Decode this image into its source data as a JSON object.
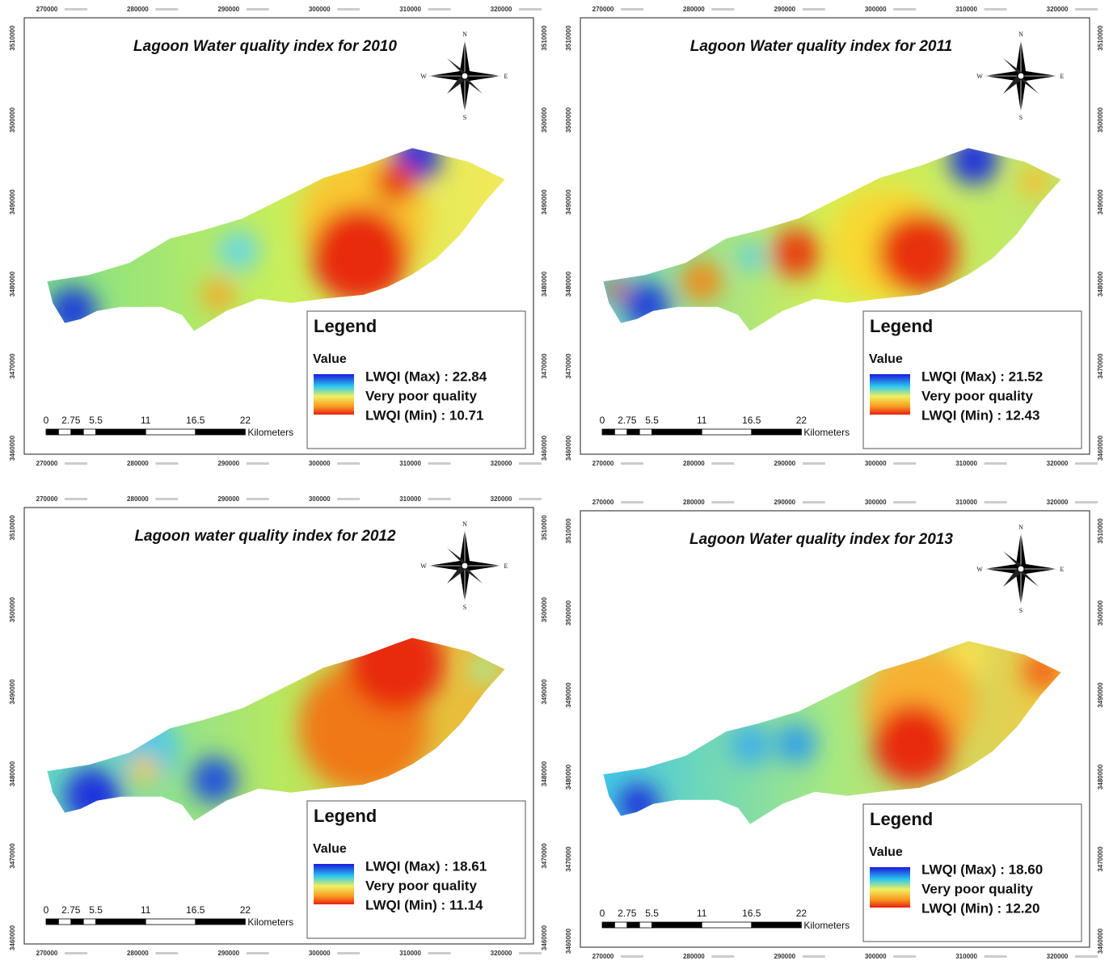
{
  "panels": [
    {
      "title": "Lagoon Water quality index for 2010",
      "legend": {
        "title": "Legend",
        "heading": "Value",
        "max": "LWQI (Max) : 22.84",
        "mid": "Very poor quality",
        "min": "LWQI (Min) : 10.71"
      }
    },
    {
      "title": "Lagoon Water quality index for 2011",
      "legend": {
        "title": "Legend",
        "heading": "Value",
        "max": "LWQI (Max) : 21.52",
        "mid": "Very poor quality",
        "min": "LWQI (Min) : 12.43"
      }
    },
    {
      "title": "Lagoon water quality index for 2012",
      "legend": {
        "title": "Legend",
        "heading": "Value",
        "max": "LWQI (Max) : 18.61",
        "mid": "Very poor quality",
        "min": "LWQI (Min) : 11.14"
      }
    },
    {
      "title": "Lagoon Water quality index for 2013",
      "legend": {
        "title": "Legend",
        "heading": "Value",
        "max": "LWQI (Max) : 18.60",
        "mid": "Very poor quality",
        "min": "LWQI (Min) : 12.20"
      }
    }
  ],
  "x_ticks": [
    "270000",
    "280000",
    "290000",
    "300000",
    "310000",
    "320000"
  ],
  "y_ticks": [
    "3510000",
    "3500000",
    "3490000",
    "3480000",
    "3470000",
    "3460000"
  ],
  "compass": {
    "n": "N",
    "s": "S",
    "e": "E",
    "w": "W"
  },
  "scale": {
    "labels": [
      "0",
      "2.75",
      "5.5",
      "11",
      "16.5",
      "22"
    ],
    "unit": "Kilometers"
  }
}
